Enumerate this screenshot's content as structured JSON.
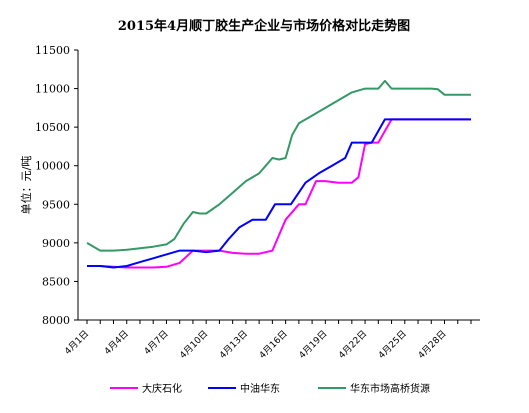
{
  "chart_data": {
    "type": "line",
    "title": "2015年4月顺丁胶生产企业与市场价格对比走势图",
    "xlabel": "",
    "ylabel": "单位：元/吨",
    "ylim": [
      8000,
      11500
    ],
    "yticks": [
      "8000",
      "8500",
      "9000",
      "9500",
      "10000",
      "10500",
      "11000",
      "11500"
    ],
    "xlim": [
      1,
      30
    ],
    "xticks": [
      {
        "x": 1,
        "label": "4月1日"
      },
      {
        "x": 4,
        "label": "4月4日"
      },
      {
        "x": 7,
        "label": "4月7日"
      },
      {
        "x": 10,
        "label": "4月10日"
      },
      {
        "x": 13,
        "label": "4月13日"
      },
      {
        "x": 16,
        "label": "4月16日"
      },
      {
        "x": 19,
        "label": "4月19日"
      },
      {
        "x": 22,
        "label": "4月22日"
      },
      {
        "x": 25,
        "label": "4月25日"
      },
      {
        "x": 28,
        "label": "4月28日"
      }
    ],
    "grid": false,
    "legend_position": "bottom",
    "series": [
      {
        "name": "大庆石化",
        "color": "#ff00ff",
        "points": [
          [
            1,
            8700
          ],
          [
            2,
            8700
          ],
          [
            3,
            8690
          ],
          [
            4,
            8680
          ],
          [
            5,
            8680
          ],
          [
            6,
            8680
          ],
          [
            7,
            8690
          ],
          [
            8,
            8740
          ],
          [
            9,
            8900
          ],
          [
            10,
            8900
          ],
          [
            11,
            8900
          ],
          [
            12,
            8870
          ],
          [
            13,
            8860
          ],
          [
            14,
            8860
          ],
          [
            15,
            8900
          ],
          [
            16,
            9300
          ],
          [
            17,
            9500
          ],
          [
            17.5,
            9500
          ],
          [
            18.3,
            9800
          ],
          [
            19,
            9800
          ],
          [
            20,
            9780
          ],
          [
            21,
            9780
          ],
          [
            21.5,
            9850
          ],
          [
            22,
            10280
          ],
          [
            22.5,
            10300
          ],
          [
            23,
            10300
          ],
          [
            23.5,
            10450
          ],
          [
            24,
            10600
          ],
          [
            25,
            10600
          ],
          [
            26,
            10600
          ],
          [
            27,
            10600
          ],
          [
            28,
            10600
          ],
          [
            29,
            10600
          ],
          [
            30,
            10600
          ]
        ]
      },
      {
        "name": "中油华东",
        "color": "#0000ff",
        "points": [
          [
            1,
            8700
          ],
          [
            2,
            8700
          ],
          [
            3,
            8680
          ],
          [
            4,
            8700
          ],
          [
            5,
            8750
          ],
          [
            6,
            8800
          ],
          [
            7,
            8850
          ],
          [
            8,
            8900
          ],
          [
            9,
            8900
          ],
          [
            10,
            8880
          ],
          [
            11,
            8900
          ],
          [
            11.7,
            9050
          ],
          [
            12.5,
            9200
          ],
          [
            13.5,
            9300
          ],
          [
            14.5,
            9300
          ],
          [
            15.2,
            9500
          ],
          [
            15.7,
            9500
          ],
          [
            16.4,
            9500
          ],
          [
            17.5,
            9780
          ],
          [
            18.5,
            9900
          ],
          [
            19.5,
            10000
          ],
          [
            20.5,
            10100
          ],
          [
            21,
            10300
          ],
          [
            22,
            10300
          ],
          [
            22.5,
            10300
          ],
          [
            23,
            10450
          ],
          [
            23.5,
            10600
          ],
          [
            24,
            10600
          ],
          [
            25,
            10600
          ],
          [
            26,
            10600
          ],
          [
            27,
            10600
          ],
          [
            28,
            10600
          ],
          [
            29,
            10600
          ],
          [
            30,
            10600
          ]
        ]
      },
      {
        "name": "华东市场高桥货源",
        "color": "#339966",
        "points": [
          [
            1,
            9000
          ],
          [
            2,
            8900
          ],
          [
            3,
            8900
          ],
          [
            4,
            8910
          ],
          [
            5,
            8930
          ],
          [
            6,
            8950
          ],
          [
            7,
            8980
          ],
          [
            7.6,
            9050
          ],
          [
            8.3,
            9250
          ],
          [
            9,
            9400
          ],
          [
            9.5,
            9380
          ],
          [
            10,
            9380
          ],
          [
            11,
            9500
          ],
          [
            12,
            9650
          ],
          [
            13,
            9800
          ],
          [
            14,
            9900
          ],
          [
            14.5,
            10000
          ],
          [
            15,
            10100
          ],
          [
            15.5,
            10080
          ],
          [
            16,
            10100
          ],
          [
            16.5,
            10400
          ],
          [
            17,
            10550
          ],
          [
            18,
            10650
          ],
          [
            19,
            10750
          ],
          [
            20,
            10850
          ],
          [
            21,
            10950
          ],
          [
            22,
            11000
          ],
          [
            22.5,
            11000
          ],
          [
            23,
            11000
          ],
          [
            23.5,
            11100
          ],
          [
            24,
            11000
          ],
          [
            25,
            11000
          ],
          [
            26,
            11000
          ],
          [
            27,
            11000
          ],
          [
            27.5,
            10990
          ],
          [
            28,
            10920
          ],
          [
            29,
            10920
          ],
          [
            30,
            10920
          ]
        ]
      }
    ]
  }
}
